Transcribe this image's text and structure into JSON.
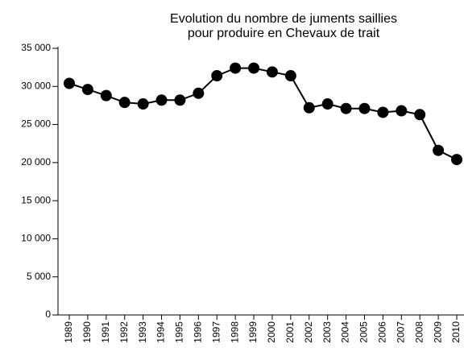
{
  "chart_data": {
    "type": "line",
    "title": [
      "Evolution du nombre de juments saillies",
      "pour produire en Chevaux de trait"
    ],
    "categories": [
      "1989",
      "1990",
      "1991",
      "1992",
      "1993",
      "1994",
      "1995",
      "1996",
      "1997",
      "1998",
      "1999",
      "2000",
      "2001",
      "2002",
      "2003",
      "2004",
      "2005",
      "2006",
      "2007",
      "2008",
      "2009",
      "2010"
    ],
    "values": [
      30400,
      29600,
      28800,
      27900,
      27700,
      28200,
      28200,
      29100,
      31400,
      32400,
      32400,
      31900,
      31400,
      27200,
      27700,
      27100,
      27100,
      26600,
      26800,
      26300,
      21600,
      20400
    ],
    "color": "#000000",
    "ylim": [
      0,
      35000
    ],
    "yticks": [
      0,
      {
        "value": 5000,
        "label": "5 000"
      },
      {
        "value": 10000,
        "label": "10 000"
      },
      {
        "value": 15000,
        "label": "15 000"
      },
      {
        "value": 20000,
        "label": "20 000"
      },
      {
        "value": 25000,
        "label": "25 000"
      },
      {
        "value": 30000,
        "label": "30 000"
      },
      {
        "value": 35000,
        "label": "35 000"
      }
    ],
    "grid": false
  }
}
